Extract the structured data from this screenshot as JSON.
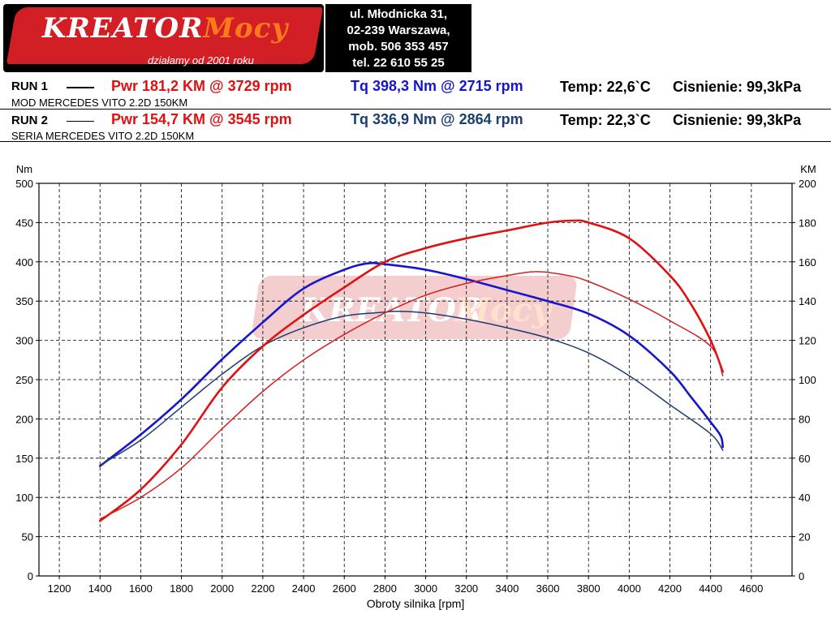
{
  "logo": {
    "brand_main": "KREATOR",
    "brand_accent": "Mocy",
    "slogan": "działamy od 2001 roku"
  },
  "address": {
    "lines": [
      "ul. Młodnicka 31,",
      "02-239  Warszawa,",
      "mob.  506 353 457",
      "tel.  22 610 55 25"
    ]
  },
  "runs": [
    {
      "label": "RUN 1",
      "pwr": "Pwr  181,2 KM @ 3729 rpm",
      "tq": "Tq 398,3 Nm @ 2715 rpm",
      "temp": "Temp: 22,6`C",
      "pressure": "Cisnienie: 99,3kPa",
      "description": "MOD MERCEDES VITO 2.2D 150KM"
    },
    {
      "label": "RUN 2",
      "pwr": "Pwr  154,7 KM @ 3545 rpm",
      "tq": "Tq 336,9 Nm @ 2864 rpm",
      "temp": "Temp: 22,3`C",
      "pressure": "Cisnienie: 99,3kPa",
      "description": "SERIA MERCEDES VITO 2.2D 150KM"
    }
  ],
  "colors": {
    "pwr_run1": "#e01010",
    "pwr_run2": "#d42020",
    "tq_run1": "#1515d0",
    "tq_run2": "#1a3d74",
    "grid": "#000000",
    "frame": "#000000"
  },
  "chart_data": {
    "type": "line",
    "title": "",
    "xlabel": "Obroty silnika [rpm]",
    "ylabel_left": "Nm",
    "ylabel_right": "KM",
    "xlim": [
      1100,
      4800
    ],
    "ylim_left": [
      0,
      500
    ],
    "ylim_right": [
      0,
      200
    ],
    "x_ticks": [
      1200,
      1400,
      1600,
      1800,
      2000,
      2200,
      2400,
      2600,
      2800,
      3000,
      3200,
      3400,
      3600,
      3800,
      4000,
      4200,
      4400,
      4600
    ],
    "y_ticks_left": [
      0,
      50,
      100,
      150,
      200,
      250,
      300,
      350,
      400,
      450,
      500
    ],
    "y_ticks_right": [
      0,
      20,
      40,
      60,
      80,
      100,
      120,
      140,
      160,
      180,
      200
    ],
    "grid": true,
    "series": [
      {
        "name": "Tq RUN 1",
        "axis": "left",
        "color": "#1515d0",
        "x": [
          1400,
          1600,
          1800,
          2000,
          2200,
          2400,
          2600,
          2715,
          2800,
          3000,
          3200,
          3400,
          3600,
          3800,
          4000,
          4200,
          4300,
          4400,
          4450,
          4460
        ],
        "y": [
          140,
          180,
          225,
          276,
          323,
          366,
          390,
          398,
          397,
          390,
          378,
          364,
          350,
          334,
          306,
          261,
          229,
          196,
          178,
          164
        ]
      },
      {
        "name": "Tq RUN 2",
        "axis": "left",
        "color": "#1a3d74",
        "x": [
          1400,
          1600,
          1800,
          2000,
          2200,
          2400,
          2600,
          2800,
          2864,
          3000,
          3200,
          3400,
          3600,
          3800,
          4000,
          4200,
          4400,
          4460
        ],
        "y": [
          141,
          173,
          215,
          257,
          293,
          316,
          331,
          336,
          337,
          335,
          327,
          316,
          303,
          284,
          255,
          218,
          181,
          160
        ]
      },
      {
        "name": "Pwr RUN 1",
        "axis": "right",
        "color": "#e01010",
        "x": [
          1400,
          1600,
          1800,
          2000,
          2200,
          2400,
          2600,
          2800,
          3000,
          3200,
          3400,
          3600,
          3729,
          3800,
          4000,
          4200,
          4300,
          4400,
          4460
        ],
        "y": [
          28,
          44,
          67,
          96,
          117,
          133,
          147,
          160,
          167,
          172,
          176,
          180,
          181,
          180,
          172,
          153,
          139,
          120,
          104
        ]
      },
      {
        "name": "Pwr RUN 2",
        "axis": "right",
        "color": "#d42020",
        "x": [
          1400,
          1600,
          1800,
          2000,
          2200,
          2400,
          2600,
          2800,
          3000,
          3200,
          3400,
          3545,
          3700,
          3800,
          4000,
          4200,
          4400,
          4460
        ],
        "y": [
          29,
          40,
          55,
          75,
          94,
          110,
          123,
          134,
          143,
          149,
          153,
          155,
          153,
          150,
          141,
          130,
          117,
          102
        ]
      }
    ]
  }
}
